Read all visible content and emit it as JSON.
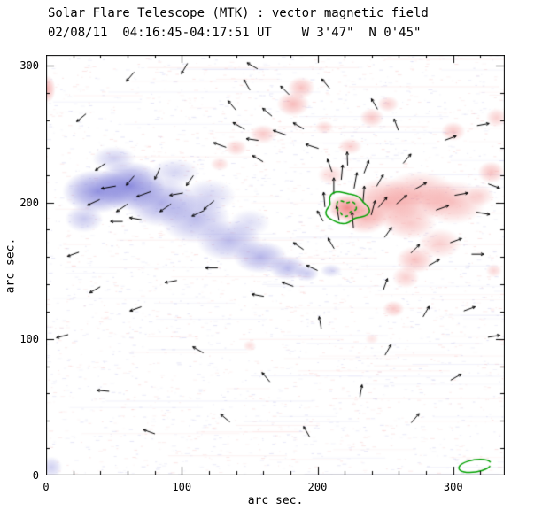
{
  "figure": {
    "background": "#ffffff"
  },
  "chart_data": {
    "type": "heatmap",
    "title": "Solar Flare Telescope (MTK) : vector magnetic field",
    "subtitle": "02/08/11  04:16:45-04:17:51 UT    W 3'47\"  N 0'45\"",
    "xlabel": "arc sec.",
    "ylabel": "arc sec.",
    "xlim": [
      0,
      338
    ],
    "ylim": [
      0,
      308
    ],
    "xticks": [
      0,
      100,
      200,
      300
    ],
    "yticks": [
      0,
      100,
      200,
      300
    ],
    "minor_tick_step": 20,
    "axis_color": "#000000",
    "vector_color": "#000000",
    "contour_color": "#00a000",
    "polarity_colors": {
      "negative": "#7878d8",
      "positive": "#f07878"
    },
    "blob_format": "[x,y,rx,ry,alpha] in arcsec data coords",
    "negative_blobs": [
      [
        38,
        208,
        26,
        16,
        0.8
      ],
      [
        62,
        212,
        26,
        18,
        0.85
      ],
      [
        85,
        200,
        26,
        18,
        0.6
      ],
      [
        110,
        188,
        26,
        18,
        0.5
      ],
      [
        135,
        172,
        24,
        15,
        0.5
      ],
      [
        158,
        160,
        20,
        12,
        0.55
      ],
      [
        178,
        152,
        14,
        9,
        0.5
      ],
      [
        192,
        148,
        9,
        6,
        0.4
      ],
      [
        50,
        232,
        16,
        9,
        0.35
      ],
      [
        95,
        222,
        18,
        10,
        0.3
      ],
      [
        28,
        188,
        14,
        10,
        0.4
      ],
      [
        120,
        205,
        20,
        12,
        0.3
      ],
      [
        210,
        150,
        8,
        5,
        0.3
      ],
      [
        150,
        185,
        15,
        10,
        0.25
      ],
      [
        4,
        6,
        8,
        8,
        0.35
      ]
    ],
    "positive_blobs": [
      [
        250,
        200,
        26,
        18,
        0.55
      ],
      [
        275,
        205,
        28,
        18,
        0.5
      ],
      [
        300,
        200,
        24,
        16,
        0.45
      ],
      [
        222,
        196,
        14,
        10,
        0.85
      ],
      [
        235,
        188,
        16,
        11,
        0.5
      ],
      [
        268,
        185,
        20,
        12,
        0.4
      ],
      [
        290,
        170,
        16,
        11,
        0.35
      ],
      [
        272,
        158,
        14,
        10,
        0.45
      ],
      [
        265,
        145,
        10,
        8,
        0.35
      ],
      [
        328,
        222,
        10,
        8,
        0.45
      ],
      [
        320,
        205,
        10,
        8,
        0.3
      ],
      [
        182,
        272,
        12,
        9,
        0.5
      ],
      [
        188,
        284,
        10,
        8,
        0.45
      ],
      [
        160,
        250,
        10,
        7,
        0.4
      ],
      [
        140,
        240,
        8,
        6,
        0.35
      ],
      [
        240,
        262,
        9,
        7,
        0.4
      ],
      [
        252,
        272,
        8,
        6,
        0.35
      ],
      [
        300,
        252,
        9,
        7,
        0.4
      ],
      [
        332,
        262,
        8,
        7,
        0.35
      ],
      [
        205,
        255,
        7,
        5,
        0.3
      ],
      [
        128,
        228,
        7,
        5,
        0.3
      ],
      [
        224,
        241,
        9,
        6,
        0.35
      ],
      [
        210,
        220,
        10,
        7,
        0.3
      ],
      [
        1,
        283,
        6,
        10,
        0.55
      ],
      [
        256,
        122,
        8,
        6,
        0.4
      ],
      [
        150,
        95,
        5,
        4,
        0.25
      ],
      [
        240,
        100,
        5,
        4,
        0.2
      ],
      [
        330,
        150,
        6,
        5,
        0.3
      ]
    ],
    "contours": {
      "x": 221,
      "y": 196,
      "outer": [
        15,
        11
      ],
      "inner": [
        7,
        5
      ]
    },
    "corner_mark": {
      "x": 316,
      "y": 7,
      "rx": 12,
      "ry": 4.5
    },
    "vector_format": "[x,y,angle_deg,length] in arcsec data coords",
    "vectors": [
      [
        35,
        200,
        205,
        10
      ],
      [
        46,
        211,
        190,
        11
      ],
      [
        56,
        196,
        215,
        10
      ],
      [
        62,
        216,
        230,
        9
      ],
      [
        72,
        206,
        200,
        11
      ],
      [
        82,
        221,
        245,
        9
      ],
      [
        88,
        196,
        215,
        10
      ],
      [
        96,
        206,
        190,
        10
      ],
      [
        106,
        216,
        235,
        9
      ],
      [
        112,
        192,
        205,
        10
      ],
      [
        52,
        186,
        180,
        9
      ],
      [
        40,
        226,
        215,
        9
      ],
      [
        120,
        198,
        220,
        10
      ],
      [
        66,
        188,
        170,
        9
      ],
      [
        128,
        242,
        160,
        10
      ],
      [
        142,
        256,
        150,
        10
      ],
      [
        152,
        246,
        172,
        9
      ],
      [
        163,
        266,
        140,
        9
      ],
      [
        172,
        251,
        160,
        10
      ],
      [
        137,
        271,
        130,
        9
      ],
      [
        186,
        256,
        150,
        9
      ],
      [
        196,
        241,
        162,
        10
      ],
      [
        156,
        232,
        150,
        9
      ],
      [
        148,
        286,
        120,
        9
      ],
      [
        176,
        282,
        135,
        9
      ],
      [
        205,
        202,
        95,
        11
      ],
      [
        212,
        212,
        90,
        12
      ],
      [
        218,
        222,
        85,
        11
      ],
      [
        222,
        232,
        92,
        10
      ],
      [
        228,
        216,
        80,
        12
      ],
      [
        234,
        206,
        85,
        12
      ],
      [
        241,
        196,
        75,
        11
      ],
      [
        215,
        192,
        100,
        11
      ],
      [
        226,
        187,
        95,
        12
      ],
      [
        236,
        226,
        70,
        10
      ],
      [
        246,
        216,
        60,
        10
      ],
      [
        209,
        227,
        110,
        10
      ],
      [
        202,
        190,
        120,
        9
      ],
      [
        248,
        200,
        50,
        10
      ],
      [
        262,
        202,
        40,
        10
      ],
      [
        276,
        212,
        30,
        10
      ],
      [
        292,
        196,
        20,
        10
      ],
      [
        306,
        206,
        10,
        10
      ],
      [
        322,
        192,
        350,
        10
      ],
      [
        272,
        166,
        45,
        9
      ],
      [
        286,
        156,
        30,
        9
      ],
      [
        302,
        172,
        20,
        9
      ],
      [
        318,
        162,
        0,
        9
      ],
      [
        330,
        212,
        340,
        9
      ],
      [
        266,
        232,
        50,
        9
      ],
      [
        252,
        178,
        55,
        9
      ],
      [
        20,
        162,
        200,
        9
      ],
      [
        12,
        102,
        195,
        9
      ],
      [
        42,
        62,
        175,
        9
      ],
      [
        76,
        32,
        160,
        9
      ],
      [
        112,
        92,
        150,
        9
      ],
      [
        132,
        42,
        140,
        9
      ],
      [
        162,
        72,
        130,
        9
      ],
      [
        192,
        32,
        120,
        9
      ],
      [
        202,
        112,
        100,
        9
      ],
      [
        232,
        62,
        80,
        9
      ],
      [
        252,
        92,
        60,
        9
      ],
      [
        272,
        42,
        50,
        9
      ],
      [
        302,
        72,
        30,
        9
      ],
      [
        312,
        122,
        20,
        9
      ],
      [
        330,
        102,
        10,
        9
      ],
      [
        26,
        262,
        220,
        9
      ],
      [
        62,
        292,
        230,
        9
      ],
      [
        102,
        298,
        240,
        9
      ],
      [
        152,
        300,
        150,
        9
      ],
      [
        206,
        287,
        130,
        9
      ],
      [
        242,
        272,
        120,
        9
      ],
      [
        258,
        257,
        110,
        9
      ],
      [
        298,
        247,
        20,
        9
      ],
      [
        322,
        257,
        10,
        9
      ],
      [
        156,
        132,
        170,
        9
      ],
      [
        122,
        152,
        180,
        9
      ],
      [
        92,
        142,
        190,
        9
      ],
      [
        66,
        122,
        200,
        9
      ],
      [
        36,
        136,
        210,
        9
      ],
      [
        186,
        168,
        145,
        9
      ],
      [
        196,
        152,
        155,
        9
      ],
      [
        178,
        140,
        160,
        9
      ],
      [
        250,
        140,
        70,
        9
      ],
      [
        280,
        120,
        60,
        9
      ],
      [
        210,
        170,
        120,
        9
      ]
    ],
    "noise": {
      "speckles": 3200,
      "streaks": 100,
      "seed": 42
    }
  }
}
